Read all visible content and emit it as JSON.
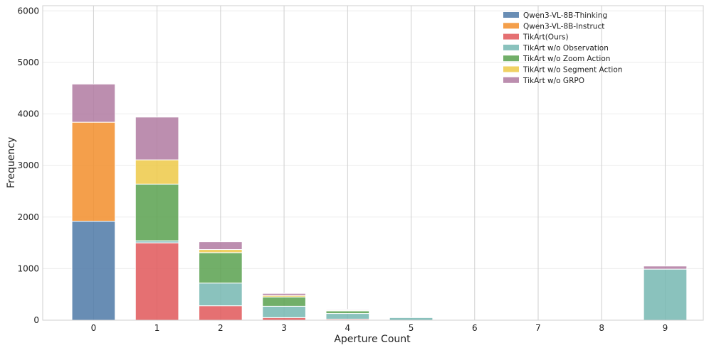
{
  "chart_data": {
    "type": "bar",
    "stacked": true,
    "title": "",
    "xlabel": "Aperture Count",
    "ylabel": "Frequency",
    "categories": [
      "0",
      "1",
      "2",
      "3",
      "4",
      "5",
      "6",
      "7",
      "8",
      "9"
    ],
    "ylim": [
      0,
      6100
    ],
    "yticks": [
      0,
      1000,
      2000,
      3000,
      4000,
      5000,
      6000
    ],
    "grid": true,
    "legend_position": "top-right",
    "series": [
      {
        "name": "Qwen3-VL-8B-Thinking",
        "color": "#4e79a7",
        "values": [
          1920,
          0,
          0,
          0,
          0,
          0,
          0,
          0,
          0,
          0
        ]
      },
      {
        "name": "Qwen3-VL-8B-Instruct",
        "color": "#f28e2b",
        "values": [
          1920,
          0,
          0,
          0,
          0,
          0,
          0,
          0,
          0,
          0
        ]
      },
      {
        "name": "TikArt(Ours)",
        "color": "#e15759",
        "values": [
          0,
          1500,
          280,
          50,
          20,
          0,
          0,
          0,
          0,
          0
        ]
      },
      {
        "name": "TikArt w/o Observation",
        "color": "#76b7b2",
        "values": [
          0,
          40,
          440,
          220,
          110,
          50,
          0,
          0,
          0,
          990
        ]
      },
      {
        "name": "TikArt w/o Zoom Action",
        "color": "#59a14f",
        "values": [
          0,
          1100,
          590,
          180,
          50,
          0,
          0,
          0,
          0,
          0
        ]
      },
      {
        "name": "TikArt w/o Segment Action",
        "color": "#edc948",
        "values": [
          0,
          470,
          60,
          30,
          15,
          0,
          0,
          0,
          0,
          0
        ]
      },
      {
        "name": "TikArt w/o GRPO",
        "color": "#b07aa1",
        "values": [
          740,
          830,
          150,
          40,
          15,
          0,
          0,
          0,
          0,
          60
        ]
      }
    ]
  }
}
